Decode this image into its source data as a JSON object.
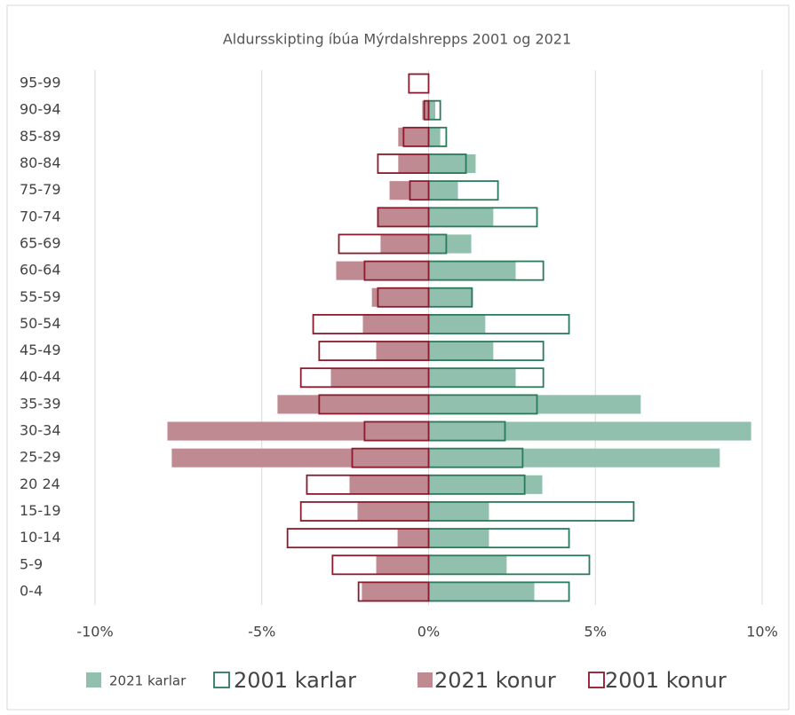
{
  "chart_data": {
    "type": "pyramid",
    "title": "Aldursskipting íbúa Mýrdalshrepps 2001 og 2021",
    "categories": [
      "0-4",
      "5-9",
      "10-14",
      "15-19",
      "20 24",
      "25-29",
      "30-34",
      "35-39",
      "40-44",
      "45-49",
      "50-54",
      "55-59",
      "60-64",
      "65-69",
      "70-74",
      "75-79",
      "80-84",
      "85-89",
      "90-94",
      "95-99"
    ],
    "series": [
      {
        "name": "2021 karlar",
        "color": "#91c0ae",
        "style": "filled",
        "values": [
          3.17,
          2.34,
          1.81,
          1.81,
          3.41,
          8.73,
          9.67,
          6.36,
          2.61,
          1.94,
          1.7,
          1.33,
          2.61,
          1.28,
          1.94,
          0.88,
          1.41,
          0.35,
          0.2,
          0
        ]
      },
      {
        "name": "2001 karlar",
        "color": "#2a7a5c",
        "style": "outline",
        "values": [
          4.21,
          4.82,
          4.21,
          6.15,
          2.88,
          2.82,
          2.29,
          3.25,
          3.44,
          3.44,
          4.21,
          1.3,
          3.44,
          0.53,
          3.25,
          2.08,
          1.12,
          0.53,
          0.35,
          0
        ]
      },
      {
        "name": "2021 konur",
        "color": "#c08a93",
        "style": "filled",
        "values": [
          -2.0,
          -1.57,
          -0.93,
          -2.13,
          -2.37,
          -7.7,
          -7.83,
          -4.53,
          -2.93,
          -1.57,
          -1.97,
          -1.7,
          -2.77,
          -1.44,
          -1.52,
          -1.17,
          -0.91,
          -0.91,
          -0.19,
          0
        ]
      },
      {
        "name": "2001 konur",
        "color": "#8b1a2c",
        "style": "outline",
        "values": [
          -2.1,
          -2.88,
          -4.23,
          -3.83,
          -3.65,
          -2.29,
          -1.92,
          -3.28,
          -3.83,
          -3.28,
          -3.46,
          -1.52,
          -1.92,
          -2.69,
          -1.52,
          -0.56,
          -1.52,
          -0.75,
          -0.13,
          -0.59
        ]
      }
    ],
    "xlim": [
      -10,
      10
    ],
    "xticks": [
      {
        "value": -10,
        "label": "-10%"
      },
      {
        "value": -5,
        "label": "-5%"
      },
      {
        "value": 0,
        "label": "0%"
      },
      {
        "value": 5,
        "label": "5%"
      },
      {
        "value": 10,
        "label": "10%"
      }
    ],
    "grid": true,
    "legend": "bottom"
  }
}
